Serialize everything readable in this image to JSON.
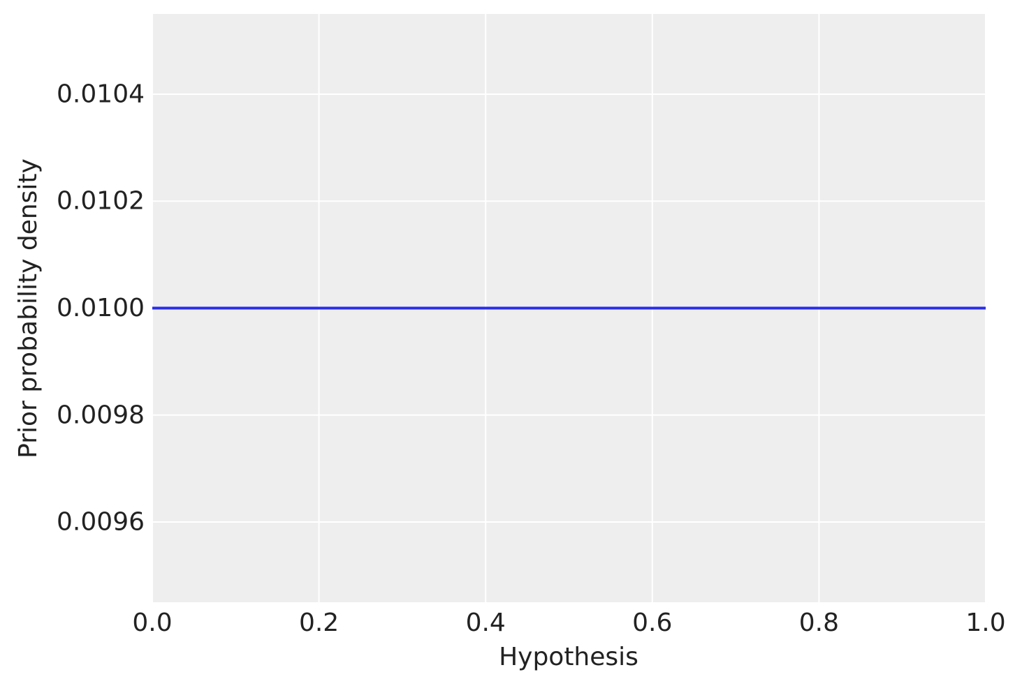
{
  "chart_data": {
    "type": "line",
    "title": "",
    "xlabel": "Hypothesis",
    "ylabel": "Prior probability density",
    "xlim": [
      0.0,
      1.0
    ],
    "ylim": [
      0.00945,
      0.01055
    ],
    "x_ticks": [
      0.0,
      0.2,
      0.4,
      0.6,
      0.8,
      1.0
    ],
    "x_tick_labels": [
      "0.0",
      "0.2",
      "0.4",
      "0.6",
      "0.8",
      "1.0"
    ],
    "y_ticks": [
      0.0096,
      0.0098,
      0.01,
      0.0102,
      0.0104
    ],
    "y_tick_labels": [
      "0.0096",
      "0.0098",
      "0.0100",
      "0.0102",
      "0.0104"
    ],
    "grid": true,
    "legend": "none",
    "background_color": "#eeeeee",
    "series": [
      {
        "color": "#2a2eec",
        "x": [
          0.0,
          1.0
        ],
        "y": [
          0.01,
          0.01
        ]
      }
    ]
  }
}
